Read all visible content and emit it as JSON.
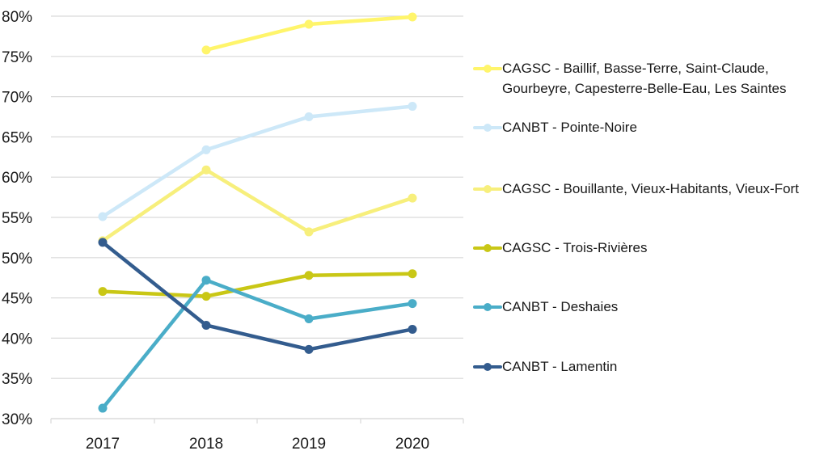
{
  "chart_data": {
    "type": "line",
    "title": "",
    "xlabel": "",
    "ylabel": "",
    "categories": [
      "2017",
      "2018",
      "2019",
      "2020"
    ],
    "ylim": [
      0.3,
      0.8
    ],
    "yticks": [
      0.3,
      0.35,
      0.4,
      0.45,
      0.5,
      0.55,
      0.6,
      0.65,
      0.7,
      0.75,
      0.8
    ],
    "ytick_labels": [
      "30%",
      "35%",
      "40%",
      "45%",
      "50%",
      "55%",
      "60%",
      "65%",
      "70%",
      "75%",
      "80%"
    ],
    "grid": "horizontal",
    "legend_position": "right",
    "series": [
      {
        "name": "CAGSC - Baillif, Basse-Terre, Saint-Claude, Gourbeyre, Capesterre-Belle-Eau, Les Saintes",
        "color": "#FFF56B",
        "values": [
          null,
          0.758,
          0.79,
          0.799
        ]
      },
      {
        "name": "CANBT - Pointe-Noire",
        "color": "#CDE8F8",
        "values": [
          0.551,
          0.634,
          0.675,
          0.688
        ]
      },
      {
        "name": "CAGSC - Bouillante, Vieux-Habitants, Vieux-Fort",
        "color": "#F7EF7C",
        "values": [
          0.521,
          0.609,
          0.532,
          0.574
        ]
      },
      {
        "name": "CAGSC - Trois-Rivières",
        "color": "#C9C716",
        "values": [
          0.458,
          0.452,
          0.478,
          0.48
        ]
      },
      {
        "name": "CANBT - Deshaies",
        "color": "#4AADC8",
        "values": [
          0.313,
          0.472,
          0.424,
          0.443
        ]
      },
      {
        "name": "CANBT - Lamentin",
        "color": "#335C8E",
        "values": [
          0.519,
          0.416,
          0.386,
          0.411
        ]
      }
    ]
  }
}
